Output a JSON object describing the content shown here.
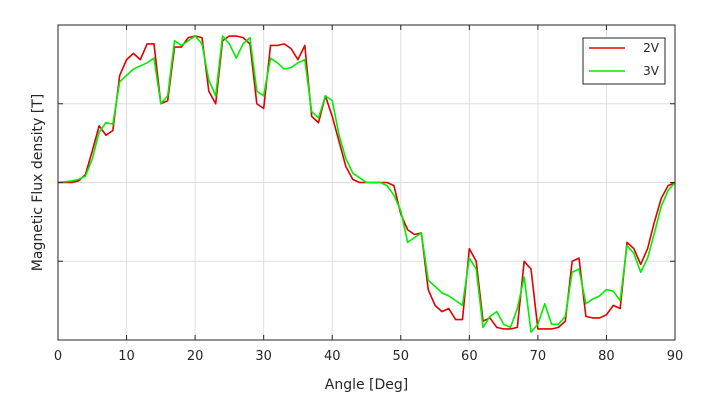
{
  "chart_data": {
    "type": "line",
    "xlabel": "Angle [Deg]",
    "ylabel": "Magnetic Flux density [T]",
    "xlim": [
      0,
      90
    ],
    "ylim": [
      -1,
      1
    ],
    "x_ticks": [
      "0",
      "10",
      "20",
      "30",
      "40",
      "50",
      "60",
      "70",
      "80",
      "90"
    ],
    "y_ticks": [
      -0.5,
      0,
      0.5
    ],
    "grid": true,
    "legend_position": "top-right",
    "colors": {
      "2V": "#e00000",
      "3V": "#00ee00"
    },
    "series": [
      {
        "name": "2V",
        "color": "#e00000",
        "x": [
          0,
          2,
          3,
          4,
          5,
          6,
          7,
          8,
          9,
          10,
          11,
          12,
          13,
          14,
          15,
          16,
          17,
          18,
          19,
          20,
          21,
          22,
          23,
          24,
          25,
          26,
          27,
          28,
          29,
          30,
          31,
          32,
          33,
          34,
          35,
          36,
          37,
          38,
          39,
          40,
          41,
          42,
          43,
          44,
          45,
          46,
          47,
          48,
          49,
          50,
          51,
          52,
          53,
          54,
          55,
          56,
          57,
          58,
          59,
          60,
          61,
          62,
          63,
          64,
          65,
          66,
          67,
          68,
          69,
          70,
          71,
          72,
          73,
          74,
          75,
          76,
          77,
          78,
          79,
          80,
          81,
          82,
          83,
          84,
          85,
          86,
          87,
          88,
          89,
          90
        ],
        "y": [
          0,
          0,
          0.01,
          0.05,
          0.2,
          0.36,
          0.3,
          0.33,
          0.68,
          0.78,
          0.82,
          0.78,
          0.88,
          0.88,
          0.5,
          0.52,
          0.86,
          0.86,
          0.92,
          0.93,
          0.92,
          0.58,
          0.5,
          0.9,
          0.93,
          0.93,
          0.92,
          0.88,
          0.5,
          0.47,
          0.87,
          0.87,
          0.88,
          0.85,
          0.78,
          0.87,
          0.42,
          0.38,
          0.55,
          0.42,
          0.26,
          0.1,
          0.02,
          0,
          0,
          0,
          0,
          0,
          -0.02,
          -0.2,
          -0.3,
          -0.33,
          -0.32,
          -0.68,
          -0.78,
          -0.82,
          -0.8,
          -0.87,
          -0.87,
          -0.42,
          -0.5,
          -0.88,
          -0.86,
          -0.92,
          -0.93,
          -0.93,
          -0.92,
          -0.5,
          -0.55,
          -0.93,
          -0.93,
          -0.93,
          -0.92,
          -0.88,
          -0.5,
          -0.48,
          -0.85,
          -0.86,
          -0.86,
          -0.84,
          -0.78,
          -0.8,
          -0.38,
          -0.42,
          -0.52,
          -0.42,
          -0.25,
          -0.1,
          -0.02,
          0
        ]
      },
      {
        "name": "3V",
        "color": "#00ee00",
        "x": [
          0,
          2,
          3,
          4,
          5,
          6,
          7,
          8,
          9,
          10,
          11,
          12,
          13,
          14,
          15,
          16,
          17,
          18,
          19,
          20,
          21,
          22,
          23,
          24,
          25,
          26,
          27,
          28,
          29,
          30,
          31,
          32,
          33,
          34,
          35,
          36,
          37,
          38,
          39,
          40,
          41,
          42,
          43,
          44,
          45,
          46,
          47,
          48,
          49,
          50,
          51,
          52,
          53,
          54,
          55,
          56,
          57,
          58,
          59,
          60,
          61,
          62,
          63,
          64,
          65,
          66,
          67,
          68,
          69,
          70,
          71,
          72,
          73,
          74,
          75,
          76,
          77,
          78,
          79,
          80,
          81,
          82,
          83,
          84,
          85,
          86,
          87,
          88,
          89,
          90
        ],
        "y": [
          0,
          0.01,
          0.02,
          0.04,
          0.15,
          0.32,
          0.38,
          0.37,
          0.64,
          0.68,
          0.72,
          0.74,
          0.76,
          0.79,
          0.5,
          0.55,
          0.9,
          0.87,
          0.9,
          0.93,
          0.88,
          0.65,
          0.55,
          0.93,
          0.88,
          0.79,
          0.88,
          0.92,
          0.58,
          0.55,
          0.79,
          0.76,
          0.72,
          0.73,
          0.76,
          0.78,
          0.45,
          0.41,
          0.55,
          0.52,
          0.3,
          0.15,
          0.06,
          0.03,
          0,
          0,
          0,
          -0.02,
          -0.08,
          -0.18,
          -0.38,
          -0.35,
          -0.32,
          -0.62,
          -0.66,
          -0.7,
          -0.72,
          -0.75,
          -0.78,
          -0.48,
          -0.55,
          -0.92,
          -0.85,
          -0.82,
          -0.9,
          -0.92,
          -0.8,
          -0.6,
          -0.95,
          -0.9,
          -0.77,
          -0.9,
          -0.9,
          -0.85,
          -0.57,
          -0.55,
          -0.77,
          -0.74,
          -0.72,
          -0.68,
          -0.69,
          -0.75,
          -0.4,
          -0.45,
          -0.57,
          -0.48,
          -0.32,
          -0.15,
          -0.05,
          0
        ]
      }
    ]
  }
}
